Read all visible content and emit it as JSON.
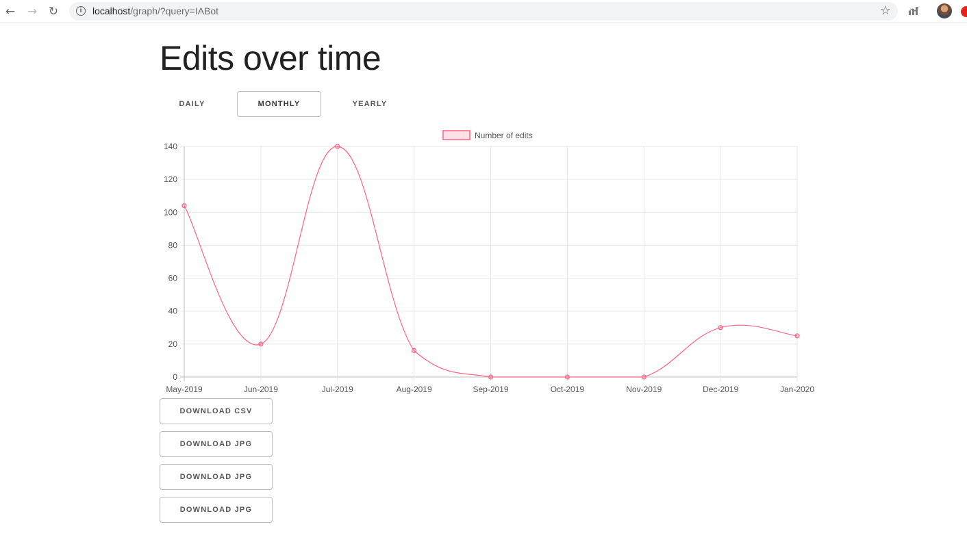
{
  "browser": {
    "url_host": "localhost",
    "url_rest": "/graph/?query=IABot"
  },
  "page": {
    "title": "Edits over time"
  },
  "tabs": [
    {
      "label": "DAILY",
      "active": false
    },
    {
      "label": "MONTHLY",
      "active": true
    },
    {
      "label": "YEARLY",
      "active": false
    }
  ],
  "chart_data": {
    "type": "line",
    "categories": [
      "May-2019",
      "Jun-2019",
      "Jul-2019",
      "Aug-2019",
      "Sep-2019",
      "Oct-2019",
      "Nov-2019",
      "Dec-2019",
      "Jan-2020"
    ],
    "series": [
      {
        "name": "Number of edits",
        "values": [
          104,
          20,
          140,
          16,
          0,
          0,
          0,
          30,
          25
        ],
        "color": "#ff6384"
      }
    ],
    "y_ticks": [
      0,
      20,
      40,
      60,
      80,
      100,
      120,
      140
    ],
    "ylim": [
      0,
      140
    ],
    "grid": true,
    "legend": "top-center"
  },
  "downloads": [
    {
      "label": "DOWNLOAD CSV"
    },
    {
      "label": "DOWNLOAD JPG"
    },
    {
      "label": "DOWNLOAD JPG"
    },
    {
      "label": "DOWNLOAD JPG"
    }
  ],
  "icons": {
    "back": "arrow-left-icon",
    "forward": "arrow-right-icon",
    "reload": "reload-icon",
    "info": "info-icon",
    "star": "star-icon"
  }
}
